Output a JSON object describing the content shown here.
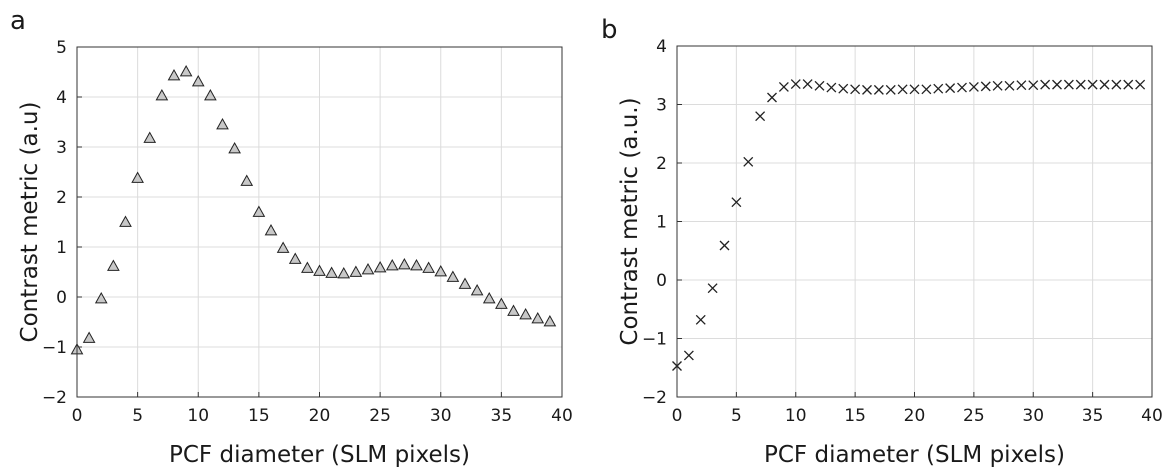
{
  "chart_data": [
    {
      "panel": "a",
      "type": "scatter",
      "marker": "triangle",
      "xlabel": "PCF diameter (SLM pixels)",
      "ylabel": "Contrast metric (a.u)",
      "xlim": [
        0,
        40
      ],
      "ylim": [
        -2,
        5
      ],
      "xticks": [
        0,
        5,
        10,
        15,
        20,
        25,
        30,
        35,
        40
      ],
      "yticks": [
        -2,
        -1,
        0,
        1,
        2,
        3,
        4,
        5
      ],
      "grid": true,
      "x": [
        0,
        1,
        2,
        3,
        4,
        5,
        6,
        7,
        8,
        9,
        10,
        11,
        12,
        13,
        14,
        15,
        16,
        17,
        18,
        19,
        20,
        21,
        22,
        23,
        24,
        25,
        26,
        27,
        28,
        29,
        30,
        31,
        32,
        33,
        34,
        35,
        36,
        37,
        38,
        39
      ],
      "y": [
        -1.05,
        -0.82,
        -0.03,
        0.62,
        1.5,
        2.38,
        3.18,
        4.03,
        4.43,
        4.51,
        4.31,
        4.03,
        3.45,
        2.97,
        2.32,
        1.7,
        1.33,
        0.98,
        0.76,
        0.58,
        0.52,
        0.48,
        0.47,
        0.5,
        0.55,
        0.59,
        0.63,
        0.65,
        0.63,
        0.58,
        0.51,
        0.4,
        0.26,
        0.13,
        -0.03,
        -0.14,
        -0.28,
        -0.35,
        -0.43,
        -0.49
      ]
    },
    {
      "panel": "b",
      "type": "scatter",
      "marker": "x",
      "xlabel": "PCF diameter (SLM pixels)",
      "ylabel": "Contrast metric (a.u.)",
      "xlim": [
        0,
        40
      ],
      "ylim": [
        -2,
        4
      ],
      "xticks": [
        0,
        5,
        10,
        15,
        20,
        25,
        30,
        35,
        40
      ],
      "yticks": [
        -2,
        -1,
        0,
        1,
        2,
        3,
        4
      ],
      "grid": true,
      "x": [
        0,
        1,
        2,
        3,
        4,
        5,
        6,
        7,
        8,
        9,
        10,
        11,
        12,
        13,
        14,
        15,
        16,
        17,
        18,
        19,
        20,
        21,
        22,
        23,
        24,
        25,
        26,
        27,
        28,
        29,
        30,
        31,
        32,
        33,
        34,
        35,
        36,
        37,
        38,
        39
      ],
      "y": [
        -1.47,
        -1.29,
        -0.68,
        -0.14,
        0.59,
        1.33,
        2.02,
        2.8,
        3.12,
        3.3,
        3.35,
        3.35,
        3.32,
        3.29,
        3.27,
        3.26,
        3.25,
        3.25,
        3.25,
        3.26,
        3.26,
        3.26,
        3.27,
        3.28,
        3.29,
        3.3,
        3.31,
        3.32,
        3.32,
        3.33,
        3.33,
        3.34,
        3.34,
        3.34,
        3.34,
        3.34,
        3.34,
        3.34,
        3.34,
        3.34
      ]
    }
  ]
}
